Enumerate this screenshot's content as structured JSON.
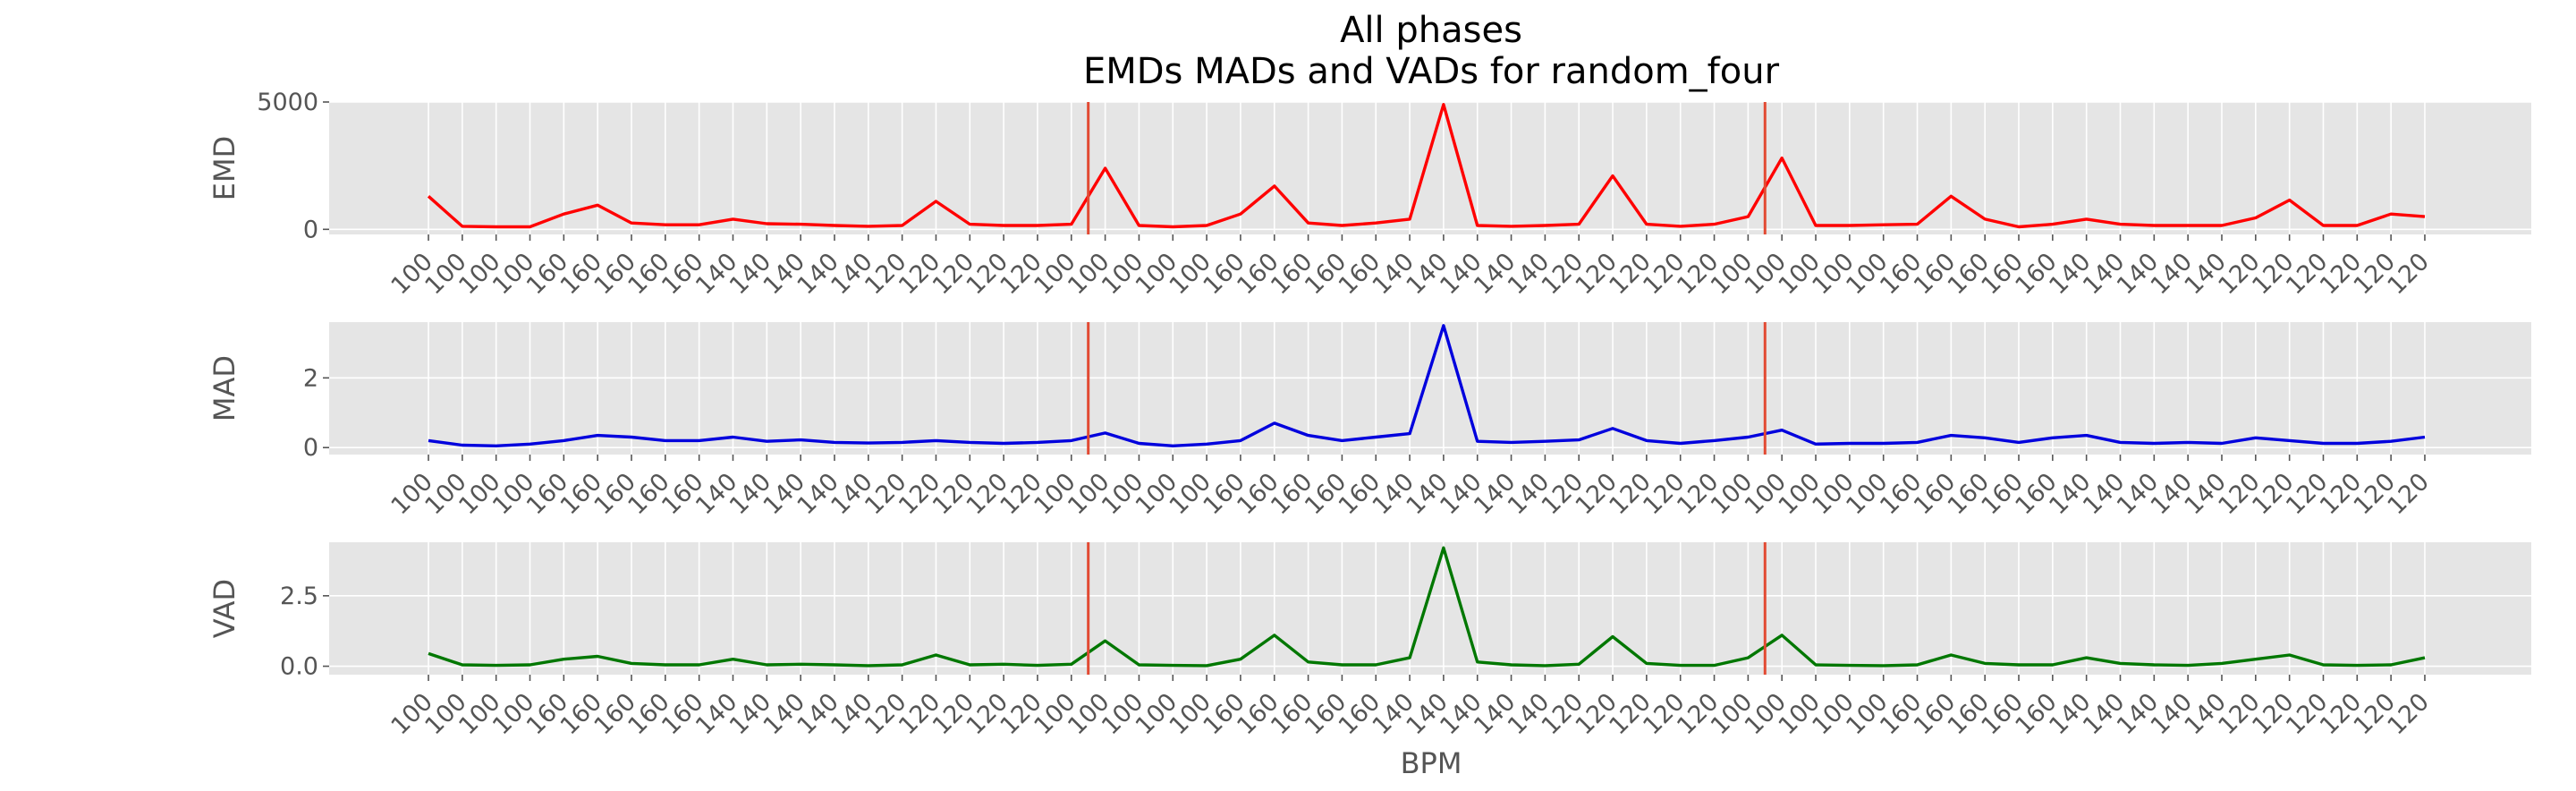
{
  "chart_data": {
    "type": "line",
    "title": [
      "All phases",
      "EMDs MADs and VADs for random_four"
    ],
    "xlabel": "BPM",
    "x_tick_labels": [
      "100",
      "100",
      "100",
      "100",
      "160",
      "160",
      "160",
      "160",
      "160",
      "140",
      "140",
      "140",
      "140",
      "140",
      "120",
      "120",
      "120",
      "120",
      "120",
      "100",
      "100",
      "100",
      "100",
      "100",
      "160",
      "160",
      "160",
      "160",
      "160",
      "140",
      "140",
      "140",
      "140",
      "140",
      "120",
      "120",
      "120",
      "120",
      "120",
      "100",
      "100",
      "100",
      "100",
      "100",
      "160",
      "160",
      "160",
      "160",
      "160",
      "140",
      "140",
      "140",
      "140",
      "140",
      "120",
      "120",
      "120",
      "120",
      "120",
      "120"
    ],
    "phase_boundaries": [
      19.5,
      39.5
    ],
    "boundary_color": "#e24a33",
    "background_color": "#e5e5e5",
    "grid": true,
    "subplots": [
      {
        "ylabel": "EMD",
        "color": "#ff0000",
        "ylim": [
          -200,
          5000
        ],
        "yticks": [
          0,
          5000
        ],
        "ytick_labels": [
          "0",
          "5000"
        ],
        "values": [
          1300,
          120,
          100,
          100,
          600,
          950,
          250,
          180,
          180,
          400,
          220,
          200,
          150,
          120,
          150,
          1100,
          200,
          150,
          150,
          200,
          2400,
          150,
          100,
          150,
          600,
          1700,
          250,
          150,
          250,
          400,
          4900,
          150,
          120,
          150,
          200,
          2100,
          200,
          120,
          200,
          500,
          2800,
          150,
          150,
          180,
          200,
          1300,
          400,
          100,
          200,
          400,
          200,
          150,
          150,
          150,
          450,
          1150,
          150,
          150,
          600,
          500
        ]
      },
      {
        "ylabel": "MAD",
        "color": "#0000dd",
        "ylim": [
          -0.2,
          3.6
        ],
        "yticks": [
          0,
          2
        ],
        "ytick_labels": [
          "0",
          "2"
        ],
        "values": [
          0.2,
          0.07,
          0.05,
          0.1,
          0.2,
          0.35,
          0.3,
          0.2,
          0.2,
          0.3,
          0.18,
          0.22,
          0.15,
          0.13,
          0.15,
          0.2,
          0.15,
          0.12,
          0.15,
          0.2,
          0.42,
          0.12,
          0.05,
          0.1,
          0.2,
          0.7,
          0.35,
          0.2,
          0.3,
          0.4,
          3.5,
          0.18,
          0.15,
          0.18,
          0.22,
          0.55,
          0.2,
          0.12,
          0.2,
          0.3,
          0.5,
          0.1,
          0.12,
          0.12,
          0.15,
          0.35,
          0.28,
          0.15,
          0.28,
          0.35,
          0.15,
          0.12,
          0.15,
          0.12,
          0.28,
          0.2,
          0.12,
          0.12,
          0.18,
          0.3
        ]
      },
      {
        "ylabel": "VAD",
        "color": "#007700",
        "ylim": [
          -0.3,
          4.4
        ],
        "yticks": [
          0.0,
          2.5
        ],
        "ytick_labels": [
          "0.0",
          "2.5"
        ],
        "values": [
          0.45,
          0.05,
          0.03,
          0.05,
          0.25,
          0.35,
          0.1,
          0.05,
          0.05,
          0.25,
          0.05,
          0.07,
          0.05,
          0.02,
          0.05,
          0.4,
          0.05,
          0.07,
          0.03,
          0.07,
          0.9,
          0.05,
          0.03,
          0.02,
          0.25,
          1.1,
          0.15,
          0.05,
          0.05,
          0.3,
          4.2,
          0.15,
          0.05,
          0.02,
          0.07,
          1.05,
          0.1,
          0.03,
          0.03,
          0.3,
          1.1,
          0.05,
          0.03,
          0.02,
          0.05,
          0.4,
          0.1,
          0.05,
          0.05,
          0.3,
          0.1,
          0.05,
          0.03,
          0.1,
          0.25,
          0.4,
          0.05,
          0.03,
          0.05,
          0.3
        ]
      }
    ]
  }
}
